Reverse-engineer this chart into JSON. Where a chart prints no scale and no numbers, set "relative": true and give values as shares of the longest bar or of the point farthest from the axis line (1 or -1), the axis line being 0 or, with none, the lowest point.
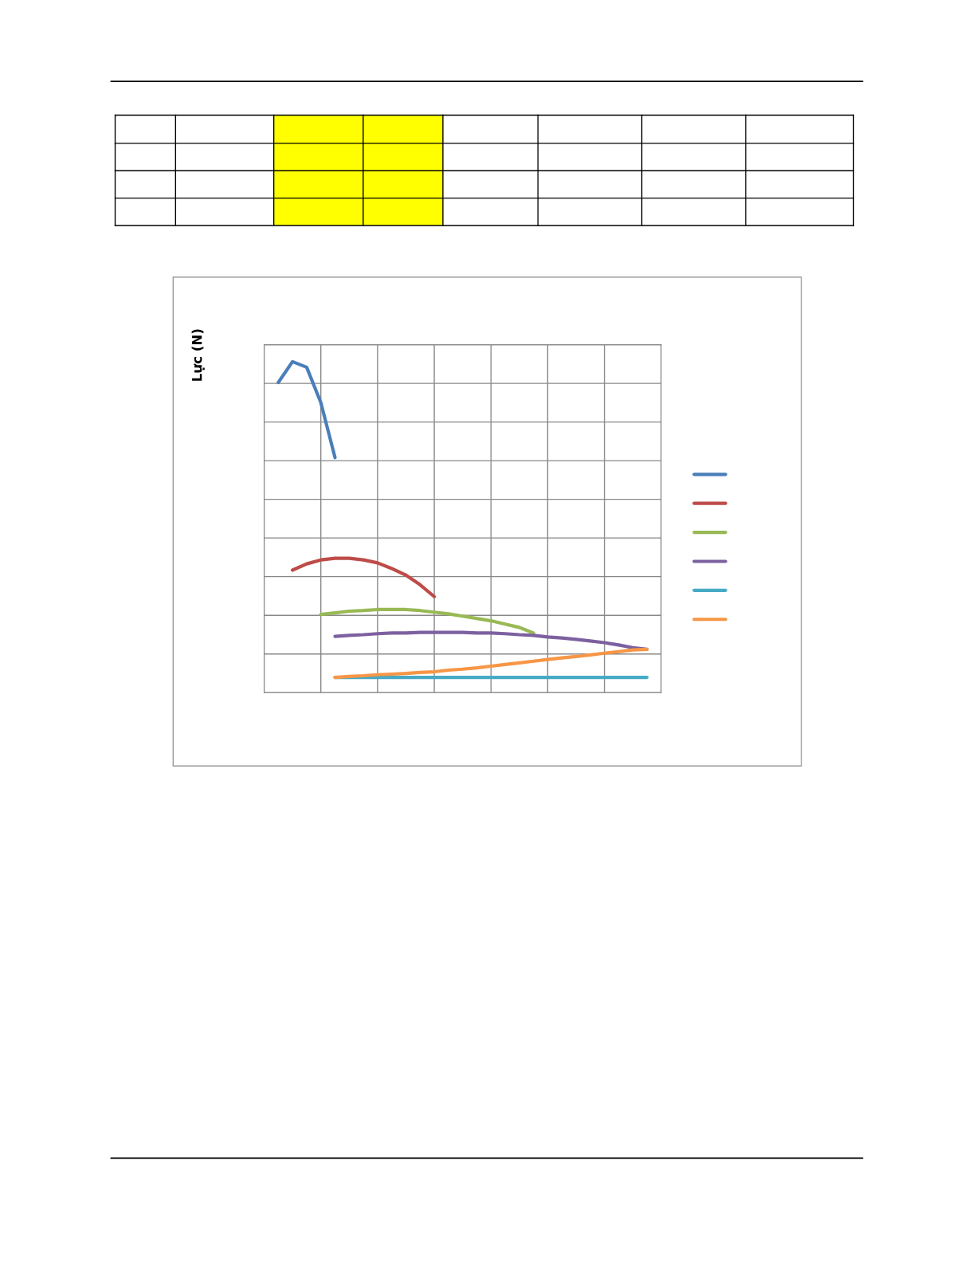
{
  "chart_data": {
    "type": "line",
    "ylabel": "Lực (N)",
    "relative": true,
    "grid": true,
    "categories": [
      null,
      null,
      null,
      null,
      null,
      null,
      null,
      null,
      null,
      null,
      null,
      null,
      null,
      null,
      null,
      null,
      null,
      null,
      null,
      null,
      null,
      null,
      null,
      null,
      null,
      null,
      null,
      null,
      null
    ],
    "series": [
      {
        "color": "#4a7ebb",
        "values": [
          null,
          0.937,
          1.0,
          0.983,
          0.876,
          0.71,
          null,
          null,
          null,
          null,
          null,
          null,
          null,
          null,
          null,
          null,
          null,
          null,
          null,
          null,
          null,
          null,
          null,
          null,
          null,
          null,
          null,
          null,
          null
        ]
      },
      {
        "color": "#be4b48",
        "values": [
          null,
          null,
          0.37,
          0.389,
          0.401,
          0.406,
          0.406,
          0.401,
          0.392,
          0.375,
          0.355,
          0.326,
          0.29,
          null,
          null,
          null,
          null,
          null,
          null,
          null,
          null,
          null,
          null,
          null,
          null,
          null,
          null,
          null,
          null
        ]
      },
      {
        "color": "#98b954",
        "values": [
          null,
          null,
          null,
          null,
          0.236,
          0.241,
          0.246,
          0.248,
          0.251,
          0.251,
          0.251,
          0.248,
          0.243,
          0.238,
          0.231,
          0.224,
          0.217,
          0.207,
          0.197,
          0.18,
          null,
          null,
          null,
          null,
          null,
          null,
          null,
          null,
          null
        ]
      },
      {
        "color": "#7d60a0",
        "values": [
          null,
          null,
          null,
          null,
          null,
          0.17,
          0.173,
          0.175,
          0.178,
          0.18,
          0.18,
          0.182,
          0.182,
          0.182,
          0.182,
          0.18,
          0.18,
          0.178,
          0.175,
          0.173,
          0.168,
          0.165,
          0.161,
          0.156,
          0.151,
          0.144,
          0.136,
          0.131,
          null
        ]
      },
      {
        "color": "#46aac5",
        "values": [
          null,
          null,
          null,
          null,
          null,
          0.046,
          0.046,
          0.046,
          0.046,
          0.046,
          0.046,
          0.046,
          0.046,
          0.046,
          0.046,
          0.046,
          0.046,
          0.046,
          0.046,
          0.046,
          0.046,
          0.046,
          0.046,
          0.046,
          0.046,
          0.046,
          0.046,
          0.046,
          null
        ]
      },
      {
        "color": "#f79646",
        "values": [
          null,
          null,
          null,
          null,
          null,
          0.046,
          0.049,
          0.051,
          0.054,
          0.056,
          0.058,
          0.061,
          0.063,
          0.068,
          0.071,
          0.075,
          0.08,
          0.085,
          0.09,
          0.095,
          0.1,
          0.105,
          0.109,
          0.114,
          0.119,
          0.124,
          0.129,
          0.131,
          null
        ]
      }
    ]
  }
}
